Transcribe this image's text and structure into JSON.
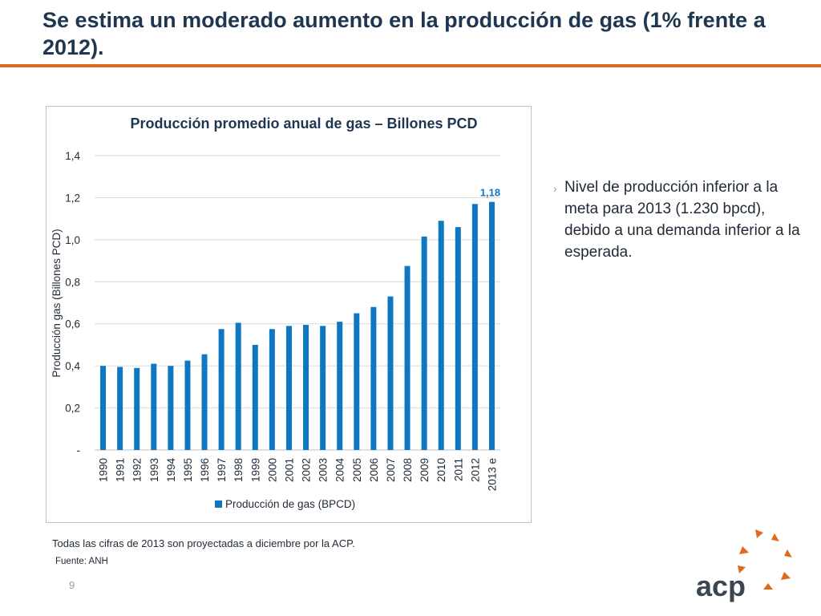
{
  "slide": {
    "title": "Se estima un moderado aumento en la producción de gas (1% frente a 2012).",
    "bullet": "Nivel de producción  inferior a la meta para 2013 (1.230 bpcd), debido a una demanda inferior a la esperada.",
    "bullet_marker": "›",
    "footnote": "Todas las cifras de 2013 son proyectadas a diciembre por la ACP.",
    "source": "Fuente: ANH",
    "page_number": "9",
    "logo_text": "acp"
  },
  "colors": {
    "accent": "#e06a1e",
    "bar": "#0f77c2",
    "title": "#1f3650",
    "label_highlight": "#0f77c2"
  },
  "chart_data": {
    "type": "bar",
    "title": "Producción promedio anual de gas – Billones PCD",
    "ylabel": "Producción gas (Billones PCD)",
    "xlabel": "",
    "ylim": [
      0,
      1.4
    ],
    "yticks": [
      0,
      0.2,
      0.4,
      0.6,
      0.8,
      1.0,
      1.2,
      1.4
    ],
    "ytick_labels": [
      "-",
      "0,2",
      "0,4",
      "0,6",
      "0,8",
      "1,0",
      "1,2",
      "1,4"
    ],
    "categories": [
      "1990",
      "1991",
      "1992",
      "1993",
      "1994",
      "1995",
      "1996",
      "1997",
      "1998",
      "1999",
      "2000",
      "2001",
      "2002",
      "2003",
      "2004",
      "2005",
      "2006",
      "2007",
      "2008",
      "2009",
      "2010",
      "2011",
      "2012",
      "2013 e"
    ],
    "series": [
      {
        "name": "Producción de gas (BPCD)",
        "values": [
          0.4,
          0.395,
          0.39,
          0.41,
          0.4,
          0.425,
          0.455,
          0.575,
          0.605,
          0.5,
          0.575,
          0.59,
          0.595,
          0.59,
          0.61,
          0.65,
          0.68,
          0.73,
          0.875,
          1.015,
          1.09,
          1.06,
          1.17,
          1.18
        ]
      }
    ],
    "data_labels": [
      {
        "index": 23,
        "text": "1,18"
      }
    ],
    "legend": "bottom-center",
    "grid": true
  }
}
